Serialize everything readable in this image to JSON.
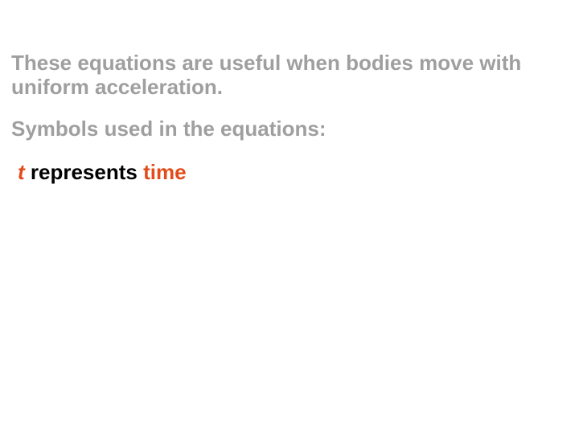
{
  "colors": {
    "background": "#ffffff",
    "muted_text": "#9f9f9f",
    "body_text": "#000000",
    "accent": "#e34c1a"
  },
  "typography": {
    "font_family": "Arial, Helvetica, sans-serif",
    "base_fontsize_pt": 20,
    "weight": 700,
    "line_height": 1.15
  },
  "intro": "These equations are useful when bodies move with uniform acceleration.",
  "subhead": "Symbols used in the equations:",
  "symbol_row": {
    "symbol": "t",
    "mid": " represents ",
    "term": "time"
  }
}
